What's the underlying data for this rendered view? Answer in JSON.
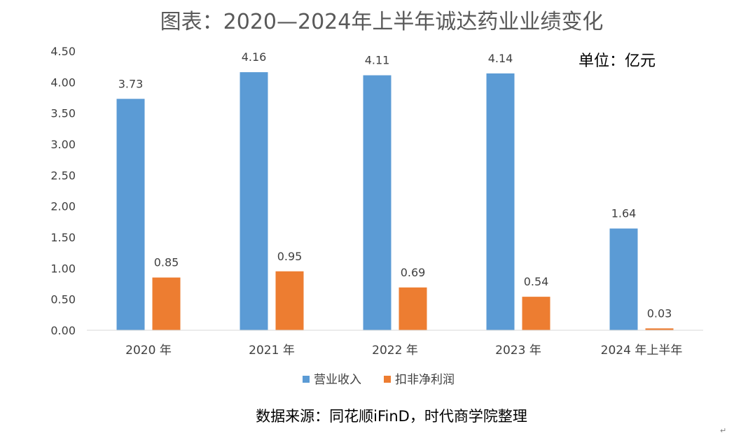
{
  "chart_data": {
    "type": "bar",
    "title": "图表：2020—2024年上半年诚达药业业绩变化",
    "unit_note": "单位：亿元",
    "source_note": "数据来源：同花顺iFinD，时代商学院整理",
    "categories": [
      "2020 年",
      "2021 年",
      "2022 年",
      "2023 年",
      "2024 年上半年"
    ],
    "series": [
      {
        "name": "营业收入",
        "color": "#5B9BD5",
        "values": [
          3.73,
          4.16,
          4.11,
          4.14,
          1.64
        ]
      },
      {
        "name": "扣非净利润",
        "color": "#ED7D31",
        "values": [
          0.85,
          0.95,
          0.69,
          0.54,
          0.03
        ]
      }
    ],
    "ylim": [
      0,
      4.5
    ],
    "yticks": [
      "0.00",
      "0.50",
      "1.00",
      "1.50",
      "2.00",
      "2.50",
      "3.00",
      "3.50",
      "4.00",
      "4.50"
    ],
    "grid": false,
    "legend_position": "bottom",
    "value_format_decimals": 2
  },
  "para_mark": "↵"
}
